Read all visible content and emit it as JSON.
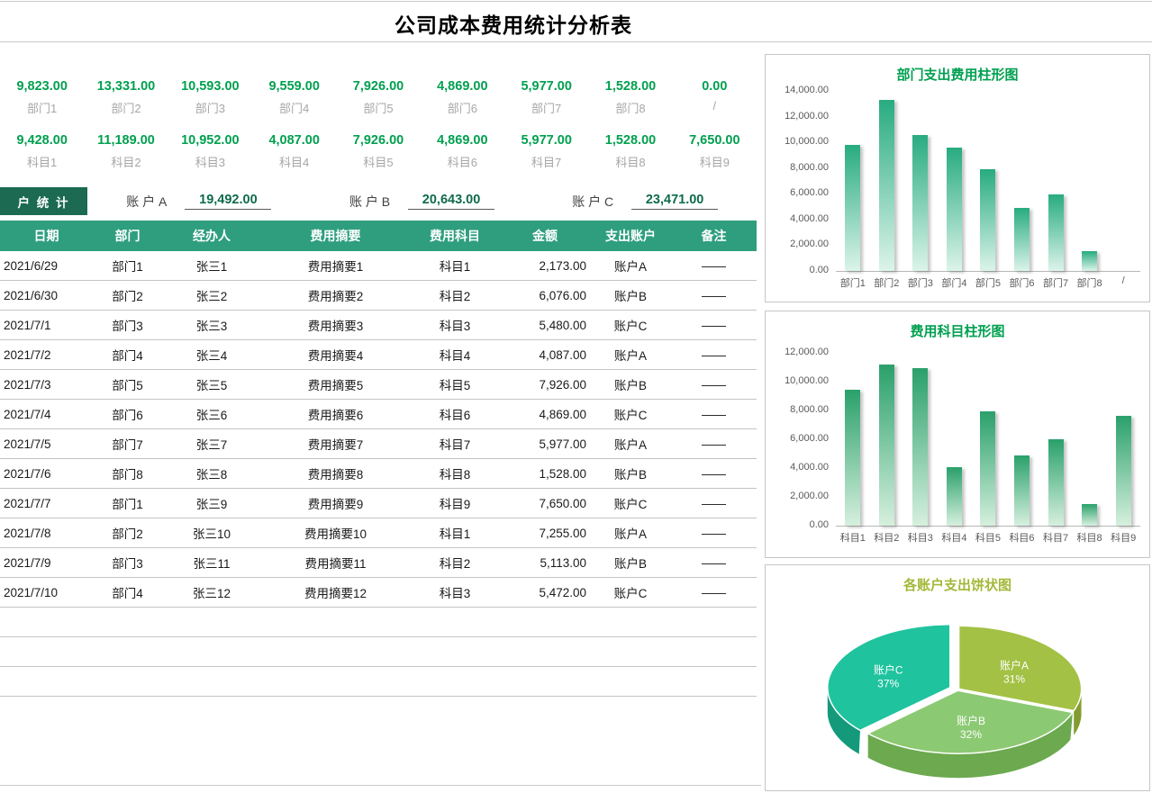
{
  "page": {
    "title": "公司成本费用统计分析表"
  },
  "summary": {
    "departments": [
      {
        "value": "9,823.00",
        "label": "部门1"
      },
      {
        "value": "13,331.00",
        "label": "部门2"
      },
      {
        "value": "10,593.00",
        "label": "部门3"
      },
      {
        "value": "9,559.00",
        "label": "部门4"
      },
      {
        "value": "7,926.00",
        "label": "部门5"
      },
      {
        "value": "4,869.00",
        "label": "部门6"
      },
      {
        "value": "5,977.00",
        "label": "部门7"
      },
      {
        "value": "1,528.00",
        "label": "部门8"
      },
      {
        "value": "0.00",
        "label": "/"
      }
    ],
    "subjects": [
      {
        "value": "9,428.00",
        "label": "科目1"
      },
      {
        "value": "11,189.00",
        "label": "科目2"
      },
      {
        "value": "10,952.00",
        "label": "科目3"
      },
      {
        "value": "4,087.00",
        "label": "科目4"
      },
      {
        "value": "7,926.00",
        "label": "科目5"
      },
      {
        "value": "4,869.00",
        "label": "科目6"
      },
      {
        "value": "5,977.00",
        "label": "科目7"
      },
      {
        "value": "1,528.00",
        "label": "科目8"
      },
      {
        "value": "7,650.00",
        "label": "科目9"
      }
    ]
  },
  "accounts": {
    "box_label": "户 统 计",
    "items": [
      {
        "label": "账 户 A",
        "value": "19,492.00"
      },
      {
        "label": "账 户 B",
        "value": "20,643.00"
      },
      {
        "label": "账 户 C",
        "value": "23,471.00"
      }
    ]
  },
  "table": {
    "headers": [
      "日期",
      "部门",
      "经办人",
      "费用摘要",
      "费用科目",
      "金额",
      "支出账户",
      "备注"
    ],
    "rows": [
      [
        "2021/6/29",
        "部门1",
        "张三1",
        "费用摘要1",
        "科目1",
        "2,173.00",
        "账户A",
        "——"
      ],
      [
        "2021/6/30",
        "部门2",
        "张三2",
        "费用摘要2",
        "科目2",
        "6,076.00",
        "账户B",
        "——"
      ],
      [
        "2021/7/1",
        "部门3",
        "张三3",
        "费用摘要3",
        "科目3",
        "5,480.00",
        "账户C",
        "——"
      ],
      [
        "2021/7/2",
        "部门4",
        "张三4",
        "费用摘要4",
        "科目4",
        "4,087.00",
        "账户A",
        "——"
      ],
      [
        "2021/7/3",
        "部门5",
        "张三5",
        "费用摘要5",
        "科目5",
        "7,926.00",
        "账户B",
        "——"
      ],
      [
        "2021/7/4",
        "部门6",
        "张三6",
        "费用摘要6",
        "科目6",
        "4,869.00",
        "账户C",
        "——"
      ],
      [
        "2021/7/5",
        "部门7",
        "张三7",
        "费用摘要7",
        "科目7",
        "5,977.00",
        "账户A",
        "——"
      ],
      [
        "2021/7/6",
        "部门8",
        "张三8",
        "费用摘要8",
        "科目8",
        "1,528.00",
        "账户B",
        "——"
      ],
      [
        "2021/7/7",
        "部门1",
        "张三9",
        "费用摘要9",
        "科目9",
        "7,650.00",
        "账户C",
        "——"
      ],
      [
        "2021/7/8",
        "部门2",
        "张三10",
        "费用摘要10",
        "科目1",
        "7,255.00",
        "账户A",
        "——"
      ],
      [
        "2021/7/9",
        "部门3",
        "张三11",
        "费用摘要11",
        "科目2",
        "5,113.00",
        "账户B",
        "——"
      ],
      [
        "2021/7/10",
        "部门4",
        "张三12",
        "费用摘要12",
        "科目3",
        "5,472.00",
        "账户C",
        "——"
      ]
    ],
    "empty_rows": 3
  },
  "chart_data": [
    {
      "type": "bar",
      "title": "部门支出费用柱形图",
      "title_color": "#00a050",
      "categories": [
        "部门1",
        "部门2",
        "部门3",
        "部门4",
        "部门5",
        "部门6",
        "部门7",
        "部门8",
        "/"
      ],
      "values": [
        9823,
        13331,
        10593,
        9559,
        7926,
        4869,
        5977,
        1528,
        0
      ],
      "ylim": [
        0,
        14000
      ],
      "tick_labels": [
        "0.00",
        "2,000.00",
        "4,000.00",
        "6,000.00",
        "8,000.00",
        "10,000.00",
        "12,000.00",
        "14,000.00"
      ],
      "bar_top_color": "#28ab80",
      "bar_bottom_color": "#dcf4ea",
      "grid": "off",
      "legend": "none"
    },
    {
      "type": "bar",
      "title": "费用科目柱形图",
      "title_color": "#00a050",
      "categories": [
        "科目1",
        "科目2",
        "科目3",
        "科目4",
        "科目5",
        "科目6",
        "科目7",
        "科目8",
        "科目9"
      ],
      "values": [
        9428,
        11189,
        10952,
        4087,
        7926,
        4869,
        5977,
        1528,
        7650
      ],
      "ylim": [
        0,
        12000
      ],
      "tick_labels": [
        "0.00",
        "2,000.00",
        "4,000.00",
        "6,000.00",
        "8,000.00",
        "10,000.00",
        "12,000.00"
      ],
      "bar_top_color": "#2aa06b",
      "bar_bottom_color": "#d6f0de",
      "grid": "off",
      "legend": "none"
    },
    {
      "type": "pie",
      "title": "各账户支出饼状图",
      "title_color": "#a3b838",
      "slices": [
        {
          "label": "账户A",
          "percent_label": "31%",
          "value": 19492,
          "color": "#a3c144",
          "side_color": "#839c2f",
          "explode": 2
        },
        {
          "label": "账户B",
          "percent_label": "32%",
          "value": 20643,
          "color": "#8cc973",
          "side_color": "#6ca94f",
          "explode": 2
        },
        {
          "label": "账户C",
          "percent_label": "37%",
          "value": 23471,
          "color": "#1fc39e",
          "side_color": "#149a7b",
          "explode": 9
        }
      ],
      "legend": "none"
    }
  ]
}
